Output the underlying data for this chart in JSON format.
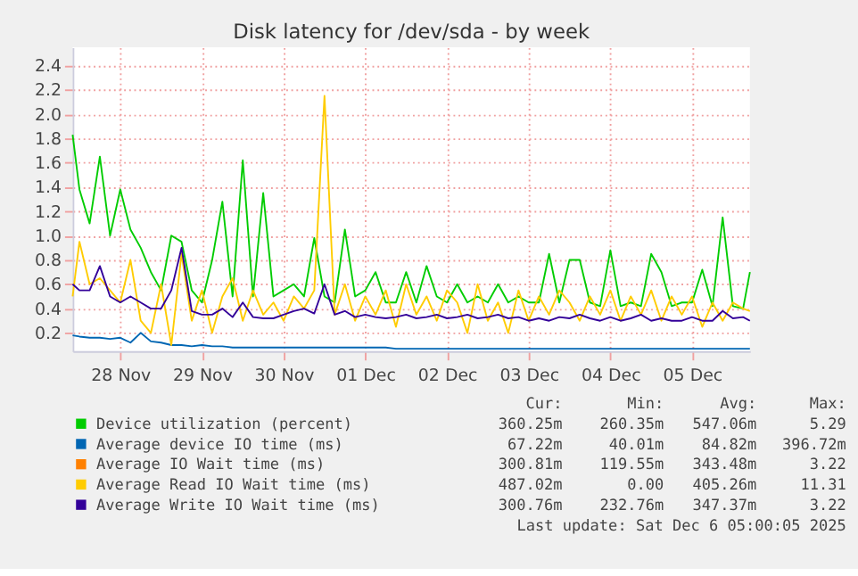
{
  "chart_data": {
    "type": "line",
    "title": "Disk latency for /dev/sda - by week",
    "x": [
      "2025-11-27T22:00",
      "2025-11-28T00:00",
      "2025-11-28T03:00",
      "2025-11-28T06:00",
      "2025-11-28T09:00",
      "2025-11-28T12:00",
      "2025-11-28T15:00",
      "2025-11-28T18:00",
      "2025-11-28T21:00",
      "2025-11-29T00:00",
      "2025-11-29T03:00",
      "2025-11-29T06:00",
      "2025-11-29T09:00",
      "2025-11-29T12:00",
      "2025-11-29T15:00",
      "2025-11-29T18:00",
      "2025-11-29T21:00",
      "2025-11-30T00:00",
      "2025-11-30T03:00",
      "2025-11-30T06:00",
      "2025-11-30T09:00",
      "2025-11-30T12:00",
      "2025-11-30T15:00",
      "2025-11-30T18:00",
      "2025-11-30T21:00",
      "2025-12-01T00:00",
      "2025-12-01T03:00",
      "2025-12-01T06:00",
      "2025-12-01T09:00",
      "2025-12-01T12:00",
      "2025-12-01T15:00",
      "2025-12-01T18:00",
      "2025-12-01T21:00",
      "2025-12-02T00:00",
      "2025-12-02T03:00",
      "2025-12-02T06:00",
      "2025-12-02T09:00",
      "2025-12-02T12:00",
      "2025-12-02T15:00",
      "2025-12-02T18:00",
      "2025-12-02T21:00",
      "2025-12-03T00:00",
      "2025-12-03T03:00",
      "2025-12-03T06:00",
      "2025-12-03T09:00",
      "2025-12-03T12:00",
      "2025-12-03T15:00",
      "2025-12-03T18:00",
      "2025-12-03T21:00",
      "2025-12-04T00:00",
      "2025-12-04T03:00",
      "2025-12-04T06:00",
      "2025-12-04T09:00",
      "2025-12-04T12:00",
      "2025-12-04T15:00",
      "2025-12-04T18:00",
      "2025-12-04T21:00",
      "2025-12-05T00:00",
      "2025-12-05T03:00",
      "2025-12-05T06:00",
      "2025-12-05T09:00",
      "2025-12-05T12:00",
      "2025-12-05T15:00",
      "2025-12-05T18:00",
      "2025-12-05T21:00",
      "2025-12-06T00:00",
      "2025-12-06T03:00",
      "2025-12-06T05:00"
    ],
    "series": [
      {
        "name": "Device utilization (percent)",
        "color": "#00cc00",
        "values": [
          1.83,
          1.38,
          1.1,
          1.65,
          1.0,
          1.38,
          1.05,
          0.9,
          0.7,
          0.55,
          1.0,
          0.95,
          0.55,
          0.45,
          0.8,
          1.28,
          0.5,
          1.62,
          0.5,
          1.35,
          0.5,
          0.55,
          0.6,
          0.5,
          0.98,
          0.5,
          0.45,
          1.05,
          0.5,
          0.55,
          0.7,
          0.45,
          0.45,
          0.7,
          0.45,
          0.75,
          0.5,
          0.45,
          0.6,
          0.45,
          0.5,
          0.45,
          0.6,
          0.45,
          0.5,
          0.45,
          0.45,
          0.85,
          0.45,
          0.8,
          0.8,
          0.45,
          0.42,
          0.88,
          0.42,
          0.45,
          0.42,
          0.85,
          0.7,
          0.42,
          0.45,
          0.45,
          0.72,
          0.42,
          1.15,
          0.42,
          0.4,
          0.7
        ]
      },
      {
        "name": "Average device IO time (ms)",
        "color": "#0066b3",
        "values": [
          0.18,
          0.17,
          0.16,
          0.16,
          0.15,
          0.16,
          0.12,
          0.2,
          0.13,
          0.12,
          0.1,
          0.1,
          0.09,
          0.1,
          0.09,
          0.09,
          0.08,
          0.08,
          0.08,
          0.08,
          0.08,
          0.08,
          0.08,
          0.08,
          0.08,
          0.08,
          0.08,
          0.08,
          0.08,
          0.08,
          0.08,
          0.08,
          0.07,
          0.07,
          0.07,
          0.07,
          0.07,
          0.07,
          0.07,
          0.07,
          0.07,
          0.07,
          0.07,
          0.07,
          0.07,
          0.07,
          0.07,
          0.07,
          0.07,
          0.07,
          0.07,
          0.07,
          0.07,
          0.07,
          0.07,
          0.07,
          0.07,
          0.07,
          0.07,
          0.07,
          0.07,
          0.07,
          0.07,
          0.07,
          0.07,
          0.07,
          0.07,
          0.07
        ]
      },
      {
        "name": "Average IO Wait time (ms)",
        "color": "#ff8000",
        "values": [
          null,
          null,
          null,
          null,
          null,
          null,
          null,
          null,
          null,
          null,
          null,
          null,
          null,
          null,
          null,
          null,
          null,
          null,
          null,
          null,
          null,
          null,
          null,
          null,
          null,
          null,
          null,
          null,
          null,
          null,
          null,
          null,
          null,
          null,
          null,
          null,
          null,
          null,
          null,
          null,
          null,
          null,
          null,
          null,
          null,
          null,
          null,
          null,
          null,
          null,
          null,
          null,
          null,
          null,
          null,
          null,
          null,
          null,
          null,
          null,
          null,
          null,
          null,
          null,
          null,
          null,
          null,
          null
        ]
      },
      {
        "name": "Average Read IO Wait time (ms)",
        "color": "#ffcc00",
        "values": [
          0.5,
          0.95,
          0.6,
          0.65,
          0.55,
          0.45,
          0.8,
          0.3,
          0.2,
          0.6,
          0.1,
          0.85,
          0.3,
          0.55,
          0.2,
          0.5,
          0.65,
          0.3,
          0.55,
          0.35,
          0.45,
          0.3,
          0.5,
          0.4,
          0.55,
          2.15,
          0.35,
          0.6,
          0.3,
          0.5,
          0.35,
          0.55,
          0.25,
          0.6,
          0.35,
          0.5,
          0.3,
          0.55,
          0.45,
          0.2,
          0.6,
          0.3,
          0.45,
          0.2,
          0.55,
          0.3,
          0.5,
          0.35,
          0.55,
          0.45,
          0.3,
          0.5,
          0.35,
          0.55,
          0.3,
          0.5,
          0.35,
          0.55,
          0.3,
          0.5,
          0.35,
          0.5,
          0.25,
          0.45,
          0.3,
          0.45,
          0.4,
          0.38
        ]
      },
      {
        "name": "Average Write IO Wait time (ms)",
        "color": "#330099",
        "values": [
          0.6,
          0.55,
          0.55,
          0.75,
          0.5,
          0.45,
          0.5,
          0.45,
          0.4,
          0.4,
          0.55,
          0.9,
          0.38,
          0.35,
          0.35,
          0.4,
          0.33,
          0.45,
          0.33,
          0.32,
          0.32,
          0.35,
          0.38,
          0.4,
          0.36,
          0.6,
          0.35,
          0.38,
          0.33,
          0.35,
          0.33,
          0.32,
          0.33,
          0.35,
          0.32,
          0.33,
          0.35,
          0.32,
          0.33,
          0.35,
          0.32,
          0.33,
          0.35,
          0.32,
          0.33,
          0.3,
          0.32,
          0.3,
          0.33,
          0.32,
          0.35,
          0.32,
          0.3,
          0.33,
          0.3,
          0.32,
          0.35,
          0.3,
          0.32,
          0.3,
          0.3,
          0.33,
          0.3,
          0.3,
          0.38,
          0.32,
          0.33,
          0.3
        ]
      }
    ],
    "xlim": [
      "2025-11-27T22:00",
      "2025-12-06T05:00"
    ],
    "xticks": [
      {
        "value": "2025-11-28T12:00",
        "label": "28 Nov"
      },
      {
        "value": "2025-11-29T12:00",
        "label": "29 Nov"
      },
      {
        "value": "2025-11-30T12:00",
        "label": "30 Nov"
      },
      {
        "value": "2025-12-01T12:00",
        "label": "01 Dec"
      },
      {
        "value": "2025-12-02T12:00",
        "label": "02 Dec"
      },
      {
        "value": "2025-12-03T12:00",
        "label": "03 Dec"
      },
      {
        "value": "2025-12-04T12:00",
        "label": "04 Dec"
      },
      {
        "value": "2025-12-05T12:00",
        "label": "05 Dec"
      }
    ],
    "ylim": [
      0.05,
      2.55
    ],
    "yticks": [
      0.2,
      0.4,
      0.6,
      0.8,
      {
        "value": 1,
        "label": "1.0"
      },
      1.2,
      1.4,
      1.6,
      1.8,
      {
        "value": 2,
        "label": "2.0"
      },
      2.2,
      2.4
    ],
    "grid": true,
    "legend": "bottom",
    "marker": "none",
    "line_style": "solid",
    "annotations": [
      "Cur:",
      "Min:",
      "Avg:",
      "Max:",
      "360.25m",
      "260.35m",
      "547.06m",
      "5.29",
      "67.22m",
      "40.01m",
      "84.82m",
      "396.72m",
      "300.81m",
      "119.55m",
      "343.48m",
      "3.22",
      "487.02m",
      "0.00",
      "405.26m",
      "11.31",
      "300.76m",
      "232.76m",
      "347.37m",
      "3.22",
      "Last update: Sat Dec  6 05:00:05 2025"
    ]
  }
}
